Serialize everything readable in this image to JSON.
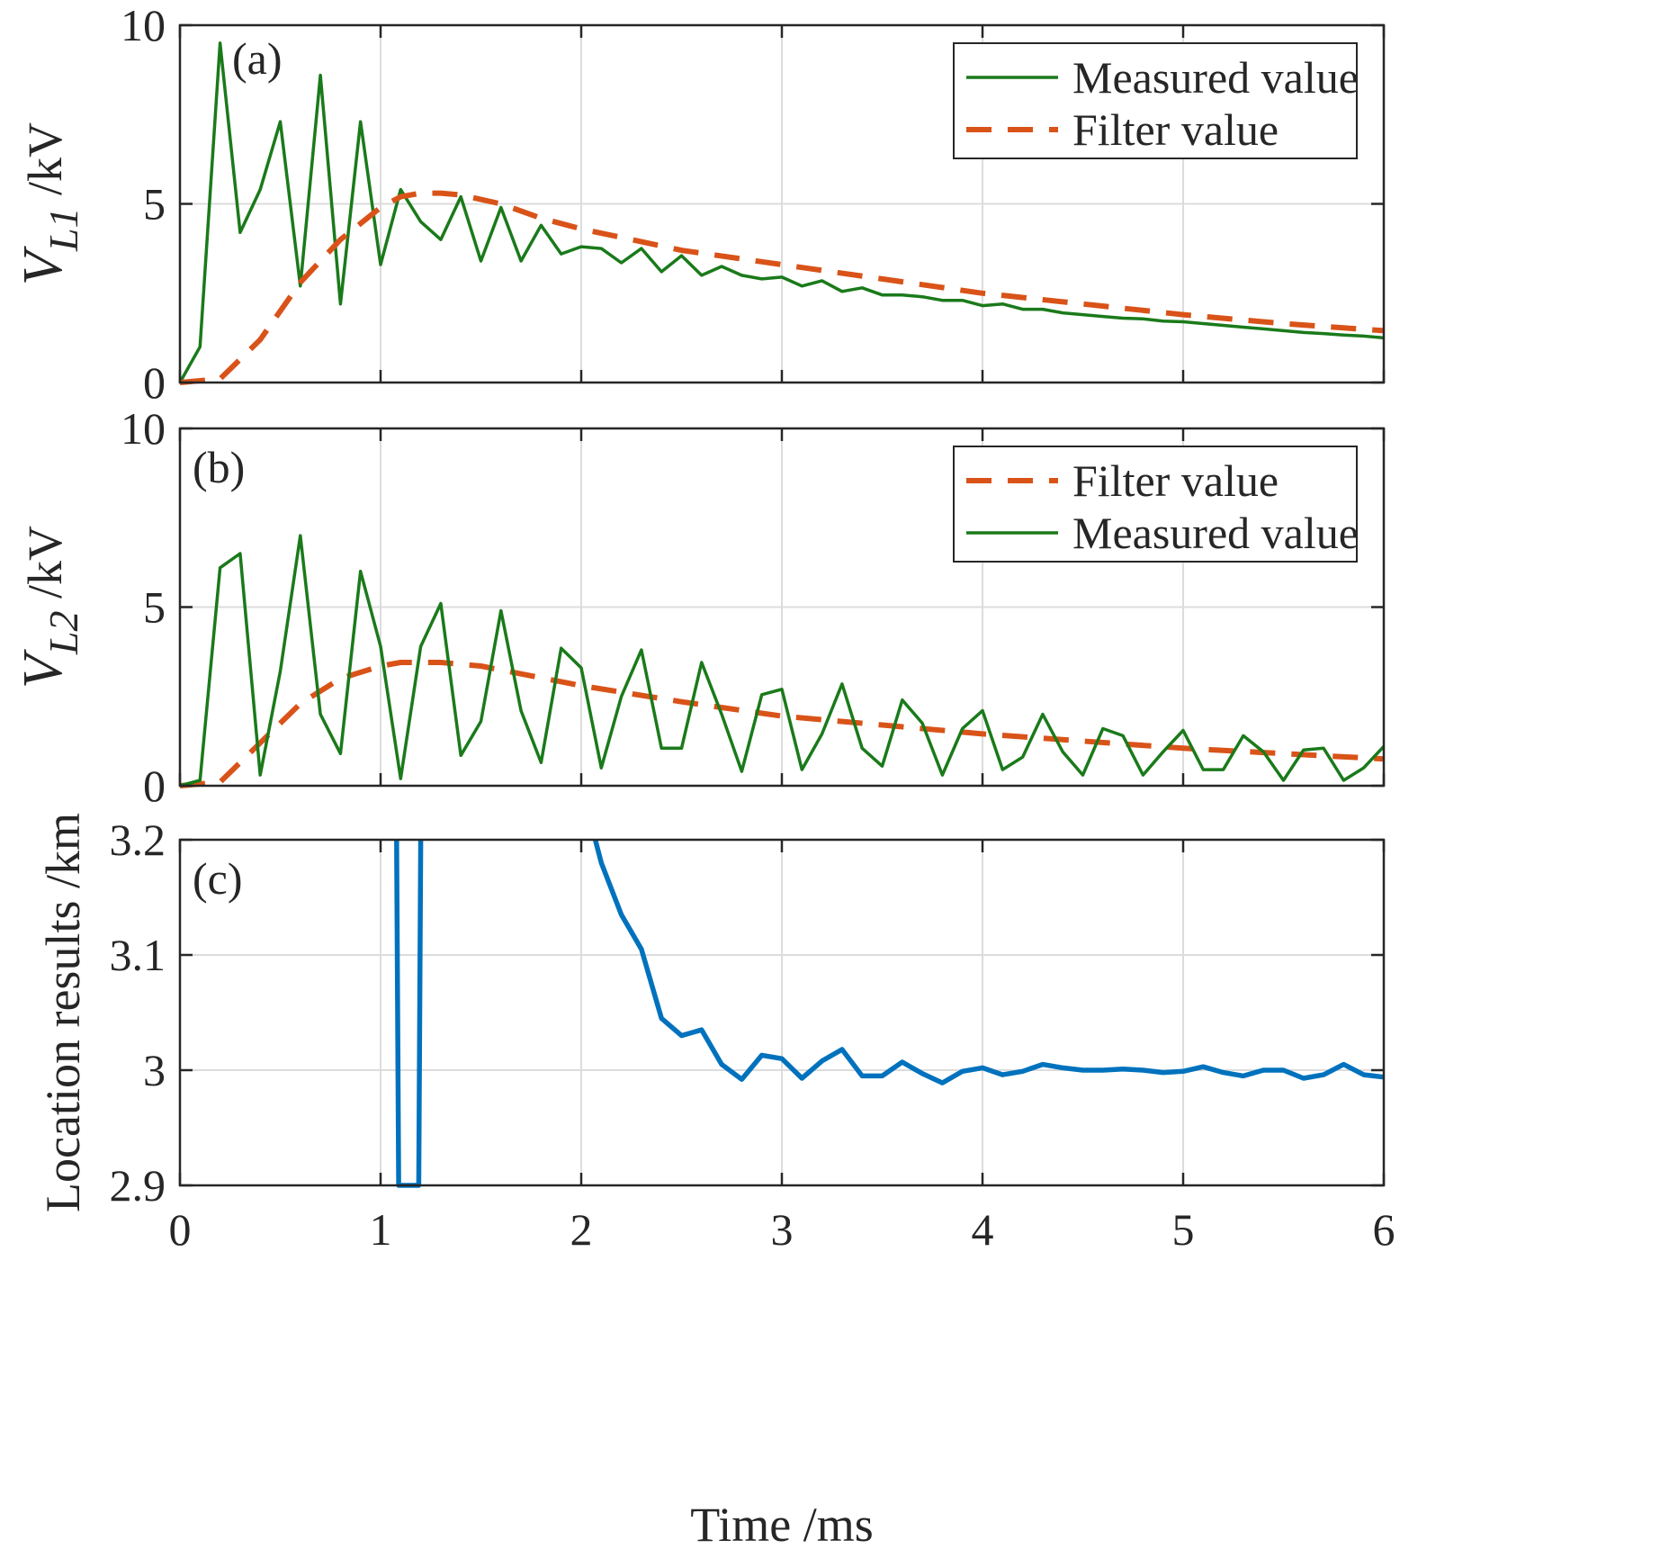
{
  "colors": {
    "measured": "#1a7a1a",
    "filter": "#d95319",
    "location": "#0072bd"
  },
  "x_axis": {
    "label": "Time /ms",
    "ticks": [
      "0",
      "1",
      "2",
      "3",
      "4",
      "5",
      "6"
    ]
  },
  "chart_data": [
    {
      "type": "line",
      "panel_label": "(a)",
      "ylabel_main": "V",
      "ylabel_sub": "L1",
      "ylabel_unit": " /kV",
      "xlim": [
        0,
        6
      ],
      "ylim": [
        0,
        10
      ],
      "yticks": [
        "0",
        "5",
        "10"
      ],
      "grid": true,
      "legend_placement": "top-right",
      "legend": [
        "Measured value",
        "Filter value"
      ],
      "series": [
        {
          "name": "Measured value",
          "style": "solid",
          "x": [
            0,
            0.1,
            0.2,
            0.3,
            0.4,
            0.5,
            0.6,
            0.7,
            0.8,
            0.9,
            1.0,
            1.1,
            1.2,
            1.3,
            1.4,
            1.5,
            1.6,
            1.7,
            1.8,
            1.9,
            2.0,
            2.1,
            2.2,
            2.3,
            2.4,
            2.5,
            2.6,
            2.7,
            2.8,
            2.9,
            3.0,
            3.1,
            3.2,
            3.3,
            3.4,
            3.5,
            3.6,
            3.7,
            3.8,
            3.9,
            4.0,
            4.1,
            4.2,
            4.3,
            4.4,
            4.5,
            4.6,
            4.7,
            4.8,
            4.9,
            5.0,
            5.1,
            5.2,
            5.3,
            5.4,
            5.5,
            5.6,
            5.7,
            5.8,
            5.9,
            6.0
          ],
          "y": [
            0,
            1.0,
            9.5,
            4.2,
            5.4,
            7.3,
            2.7,
            8.6,
            2.2,
            7.3,
            3.3,
            5.4,
            4.5,
            4.0,
            5.2,
            3.4,
            4.9,
            3.4,
            4.4,
            3.6,
            3.8,
            3.75,
            3.35,
            3.75,
            3.1,
            3.55,
            3.0,
            3.25,
            3.0,
            2.9,
            2.95,
            2.7,
            2.85,
            2.55,
            2.65,
            2.45,
            2.45,
            2.4,
            2.3,
            2.3,
            2.15,
            2.2,
            2.05,
            2.05,
            1.95,
            1.9,
            1.85,
            1.8,
            1.78,
            1.72,
            1.7,
            1.65,
            1.6,
            1.55,
            1.5,
            1.45,
            1.4,
            1.37,
            1.33,
            1.3,
            1.25
          ]
        },
        {
          "name": "Filter value",
          "style": "dashed",
          "x": [
            0,
            0.2,
            0.4,
            0.6,
            0.8,
            1.0,
            1.1,
            1.2,
            1.3,
            1.4,
            1.6,
            1.8,
            2.0,
            2.5,
            3.0,
            3.5,
            4.0,
            4.5,
            5.0,
            5.5,
            6.0
          ],
          "y": [
            0,
            0.1,
            1.2,
            2.8,
            4.0,
            4.9,
            5.2,
            5.3,
            5.3,
            5.25,
            5.0,
            4.6,
            4.3,
            3.7,
            3.3,
            2.9,
            2.5,
            2.2,
            1.9,
            1.65,
            1.45
          ]
        }
      ]
    },
    {
      "type": "line",
      "panel_label": "(b)",
      "ylabel_main": "V",
      "ylabel_sub": "L2",
      "ylabel_unit": " /kV",
      "xlim": [
        0,
        6
      ],
      "ylim": [
        0,
        10
      ],
      "yticks": [
        "0",
        "5",
        "10"
      ],
      "grid": true,
      "legend_placement": "top-right",
      "legend": [
        "Filter value",
        "Measured value"
      ],
      "series": [
        {
          "name": "Filter value",
          "style": "dashed",
          "x": [
            0,
            0.2,
            0.4,
            0.6,
            0.8,
            1.0,
            1.1,
            1.2,
            1.3,
            1.5,
            2.0,
            2.5,
            3.0,
            3.5,
            4.0,
            4.5,
            5.0,
            5.5,
            6.0
          ],
          "y": [
            0,
            0.1,
            1.2,
            2.3,
            3.0,
            3.35,
            3.45,
            3.45,
            3.45,
            3.35,
            2.8,
            2.35,
            1.95,
            1.7,
            1.45,
            1.25,
            1.05,
            0.9,
            0.75
          ]
        },
        {
          "name": "Measured value",
          "style": "solid",
          "x": [
            0,
            0.1,
            0.2,
            0.3,
            0.4,
            0.5,
            0.6,
            0.7,
            0.8,
            0.9,
            1.0,
            1.1,
            1.2,
            1.3,
            1.4,
            1.5,
            1.6,
            1.7,
            1.8,
            1.9,
            2.0,
            2.1,
            2.2,
            2.3,
            2.4,
            2.5,
            2.6,
            2.7,
            2.8,
            2.9,
            3.0,
            3.1,
            3.2,
            3.3,
            3.4,
            3.5,
            3.6,
            3.7,
            3.8,
            3.9,
            4.0,
            4.1,
            4.2,
            4.3,
            4.4,
            4.5,
            4.6,
            4.7,
            4.8,
            4.9,
            5.0,
            5.1,
            5.2,
            5.3,
            5.4,
            5.5,
            5.6,
            5.7,
            5.8,
            5.9,
            6.0
          ],
          "y": [
            0,
            0.15,
            6.1,
            6.5,
            0.3,
            3.2,
            7.0,
            2.0,
            0.9,
            6.0,
            3.9,
            0.2,
            3.9,
            5.1,
            0.85,
            1.8,
            4.9,
            2.1,
            0.65,
            3.85,
            3.3,
            0.5,
            2.5,
            3.8,
            1.05,
            1.05,
            3.45,
            2.0,
            0.4,
            2.55,
            2.7,
            0.45,
            1.45,
            2.85,
            1.05,
            0.55,
            2.4,
            1.75,
            0.3,
            1.6,
            2.1,
            0.45,
            0.8,
            2.0,
            0.95,
            0.3,
            1.6,
            1.4,
            0.3,
            0.95,
            1.55,
            0.45,
            0.45,
            1.4,
            0.95,
            0.15,
            1.0,
            1.05,
            0.15,
            0.5,
            1.1
          ]
        }
      ]
    },
    {
      "type": "line",
      "panel_label": "(c)",
      "ylabel": "Location results /km",
      "xlim": [
        0,
        6
      ],
      "ylim": [
        2.9,
        3.2
      ],
      "yticks": [
        "2.9",
        "3",
        "3.1",
        "3.2"
      ],
      "grid": true,
      "series": [
        {
          "style": "solid",
          "x": [
            1.08,
            1.09,
            1.19,
            1.2
          ],
          "y": [
            3.2,
            2.9,
            2.9,
            3.2
          ]
        },
        {
          "style": "solid",
          "x": [
            2.07,
            2.1,
            2.2,
            2.3,
            2.4,
            2.5,
            2.6,
            2.7,
            2.8,
            2.9,
            3.0,
            3.1,
            3.2,
            3.3,
            3.4,
            3.5,
            3.6,
            3.7,
            3.8,
            3.9,
            4.0,
            4.1,
            4.2,
            4.3,
            4.4,
            4.5,
            4.6,
            4.7,
            4.8,
            4.9,
            5.0,
            5.1,
            5.2,
            5.3,
            5.4,
            5.5,
            5.6,
            5.7,
            5.8,
            5.9,
            6.0
          ],
          "y": [
            3.2,
            3.18,
            3.135,
            3.105,
            3.045,
            3.03,
            3.035,
            3.005,
            2.992,
            3.013,
            3.01,
            2.993,
            3.008,
            3.018,
            2.995,
            2.995,
            3.007,
            2.997,
            2.989,
            2.999,
            3.002,
            2.996,
            2.999,
            3.005,
            3.002,
            3.0,
            3.0,
            3.001,
            3.0,
            2.998,
            2.999,
            3.003,
            2.998,
            2.995,
            3.0,
            3.0,
            2.993,
            2.996,
            3.005,
            2.996,
            2.994
          ]
        }
      ]
    }
  ]
}
